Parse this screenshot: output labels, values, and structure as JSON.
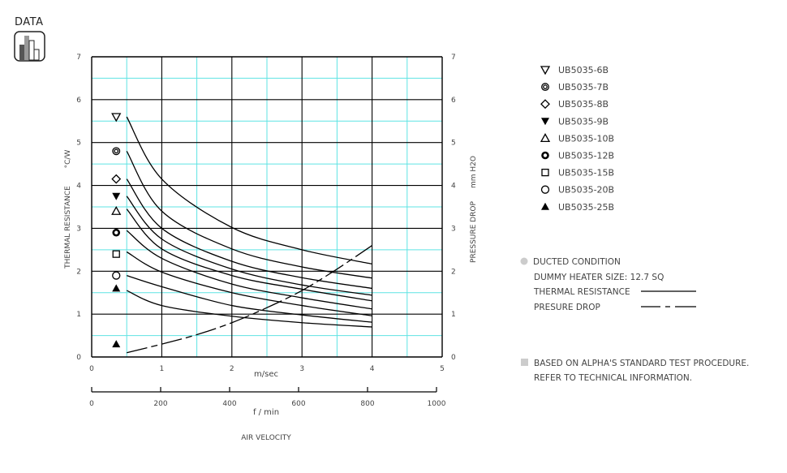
{
  "badge": {
    "label": "DATA",
    "icon": "bar-chart-icon"
  },
  "colors": {
    "major_grid": "#000000",
    "minor_grid": "#5fe3e3",
    "curve": "#000000",
    "note_bullet": "#cccccc"
  },
  "chart_data": {
    "type": "line",
    "xlabel": "m/sec",
    "xlabel2": "f / min",
    "xtitle": "AIR VELOCITY",
    "ylabel_left": "THERMAL RESISTANCE",
    "ylabel_left_unit": "°C/W",
    "ylabel_right": "PRESSURE DROP",
    "ylabel_right_unit": "mm H2O",
    "xlim": [
      0,
      5
    ],
    "ylim": [
      0,
      7
    ],
    "x2lim": [
      0,
      1000
    ],
    "xticks": [
      "0",
      "1",
      "2",
      "3",
      "4",
      "5"
    ],
    "x2ticks": [
      "0",
      "200",
      "400",
      "600",
      "800",
      "1000"
    ],
    "yticks": [
      "0",
      "1",
      "2",
      "3",
      "4",
      "5",
      "6",
      "7"
    ],
    "grid": true,
    "x": [
      0.5,
      1,
      2,
      3,
      4
    ],
    "series": [
      {
        "name": "UB5035-6B",
        "marker": "triangle-down-open",
        "marker_y": 5.6,
        "values": [
          5.6,
          4.15,
          3.02,
          2.5,
          2.17
        ]
      },
      {
        "name": "UB5035-7B",
        "marker": "double-circle",
        "marker_y": 4.8,
        "values": [
          4.8,
          3.4,
          2.52,
          2.1,
          1.84
        ]
      },
      {
        "name": "UB5035-8B",
        "marker": "diamond-open",
        "marker_y": 4.15,
        "values": [
          4.15,
          3.0,
          2.23,
          1.85,
          1.6
        ]
      },
      {
        "name": "UB5035-9B",
        "marker": "triangle-down-filled",
        "marker_y": 3.75,
        "values": [
          3.75,
          2.75,
          2.05,
          1.68,
          1.44
        ]
      },
      {
        "name": "UB5035-10B",
        "marker": "triangle-up-open",
        "marker_y": 3.4,
        "values": [
          3.45,
          2.52,
          1.9,
          1.58,
          1.31
        ]
      },
      {
        "name": "UB5035-12B",
        "marker": "thick-circle",
        "marker_y": 2.9,
        "values": [
          2.95,
          2.3,
          1.7,
          1.38,
          1.12
        ]
      },
      {
        "name": "UB5035-15B",
        "marker": "square-open",
        "marker_y": 2.4,
        "values": [
          2.45,
          1.98,
          1.5,
          1.2,
          0.96
        ]
      },
      {
        "name": "UB5035-20B",
        "marker": "circle-open",
        "marker_y": 1.9,
        "values": [
          1.9,
          1.64,
          1.2,
          0.98,
          0.81
        ]
      },
      {
        "name": "UB5035-25B",
        "marker": "triangle-up-filled",
        "marker_y": 1.6,
        "values": [
          1.55,
          1.2,
          0.95,
          0.8,
          0.7
        ]
      }
    ],
    "pressure_drop": {
      "name": "PRESURE DROP",
      "marker": "triangle-up-filled",
      "marker_y": 0.3,
      "x": [
        0.5,
        1,
        1.5,
        2,
        2.5,
        3,
        3.5,
        4
      ],
      "values": [
        0.1,
        0.3,
        0.52,
        0.8,
        1.15,
        1.55,
        2.05,
        2.6
      ]
    }
  },
  "notes": {
    "ducted": "DUCTED CONDITION",
    "heater": "DUMMY HEATER SIZE: 12.7 SQ",
    "thermal": "THERMAL RESISTANCE",
    "pressure": "PRESURE DROP",
    "based": "BASED ON ALPHA'S STANDARD TEST PROCEDURE.",
    "refer": "REFER TO TECHNICAL INFORMATION."
  }
}
